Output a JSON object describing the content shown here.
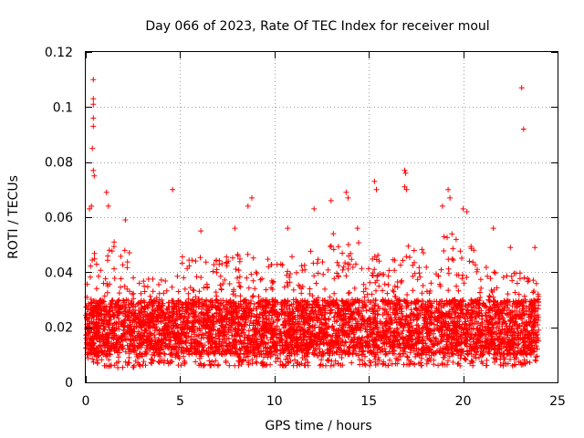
{
  "chart_data": {
    "type": "scatter",
    "title": "Day 066 of 2023, Rate Of TEC Index for receiver moul",
    "xlabel": "GPS time / hours",
    "ylabel": "ROTI / TECUs",
    "xlim": [
      0,
      25
    ],
    "ylim": [
      0,
      0.12
    ],
    "xticks": [
      0,
      5,
      10,
      15,
      20,
      25
    ],
    "yticks": [
      0,
      0.02,
      0.04,
      0.06,
      0.08,
      0.1,
      0.12
    ],
    "xtick_labels": [
      "0",
      "5",
      "10",
      "15",
      "20",
      "25"
    ],
    "ytick_labels": [
      "0",
      "0.02",
      "0.04",
      "0.06",
      "0.08",
      "0.1",
      "0.12"
    ],
    "grid": true,
    "marker": "+",
    "color": "#ff0000",
    "series": [
      {
        "name": "ROTI",
        "points": [
          [
            0.4,
            0.11
          ],
          [
            0.4,
            0.103
          ],
          [
            0.4,
            0.101
          ],
          [
            0.4,
            0.096
          ],
          [
            0.4,
            0.093
          ],
          [
            0.35,
            0.085
          ],
          [
            0.4,
            0.077
          ],
          [
            0.45,
            0.075
          ],
          [
            0.2,
            0.063
          ],
          [
            0.3,
            0.064
          ],
          [
            1.1,
            0.069
          ],
          [
            1.2,
            0.064
          ],
          [
            4.6,
            0.07
          ],
          [
            8.8,
            0.067
          ],
          [
            8.6,
            0.064
          ],
          [
            12.1,
            0.063
          ],
          [
            13.0,
            0.066
          ],
          [
            13.8,
            0.069
          ],
          [
            13.9,
            0.067
          ],
          [
            15.3,
            0.073
          ],
          [
            15.4,
            0.07
          ],
          [
            16.9,
            0.077
          ],
          [
            16.95,
            0.076
          ],
          [
            16.9,
            0.071
          ],
          [
            17.0,
            0.07
          ],
          [
            18.9,
            0.064
          ],
          [
            19.2,
            0.07
          ],
          [
            19.3,
            0.067
          ],
          [
            20.0,
            0.063
          ],
          [
            20.2,
            0.062
          ],
          [
            23.1,
            0.107
          ],
          [
            23.2,
            0.092
          ],
          [
            22.5,
            0.049
          ],
          [
            23.8,
            0.049
          ],
          [
            2.1,
            0.059
          ],
          [
            6.1,
            0.055
          ],
          [
            7.9,
            0.056
          ],
          [
            10.7,
            0.056
          ],
          [
            14.4,
            0.056
          ],
          [
            21.6,
            0.056
          ]
        ],
        "density_profile": {
          "note": "dense noise band of ROTI values between ~0.005 and ~0.05 TECUs from 0 to 24 h",
          "hours": [
            0,
            1,
            2,
            3,
            4,
            5,
            6,
            7,
            8,
            9,
            10,
            11,
            12,
            13,
            14,
            15,
            16,
            17,
            18,
            19,
            20,
            21,
            22,
            23,
            24
          ],
          "typical_max": [
            0.045,
            0.05,
            0.052,
            0.038,
            0.04,
            0.046,
            0.046,
            0.045,
            0.047,
            0.048,
            0.047,
            0.047,
            0.048,
            0.055,
            0.055,
            0.047,
            0.047,
            0.05,
            0.048,
            0.055,
            0.055,
            0.044,
            0.04,
            0.04,
            0.038
          ],
          "typical_min": [
            0.008,
            0.006,
            0.005,
            0.006,
            0.007,
            0.006,
            0.006,
            0.006,
            0.006,
            0.006,
            0.006,
            0.006,
            0.006,
            0.006,
            0.006,
            0.006,
            0.006,
            0.006,
            0.006,
            0.006,
            0.006,
            0.006,
            0.006,
            0.006,
            0.008
          ]
        }
      }
    ]
  }
}
